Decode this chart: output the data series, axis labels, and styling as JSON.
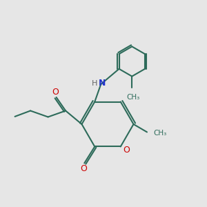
{
  "bg_color": "#e6e6e6",
  "bond_color": "#2d6b5a",
  "bond_width": 1.5,
  "o_color": "#cc0000",
  "n_color": "#2233cc",
  "h_color": "#666666",
  "figsize": [
    3.0,
    3.0
  ],
  "dpi": 100,
  "xlim": [
    0,
    10
  ],
  "ylim": [
    0,
    10
  ]
}
